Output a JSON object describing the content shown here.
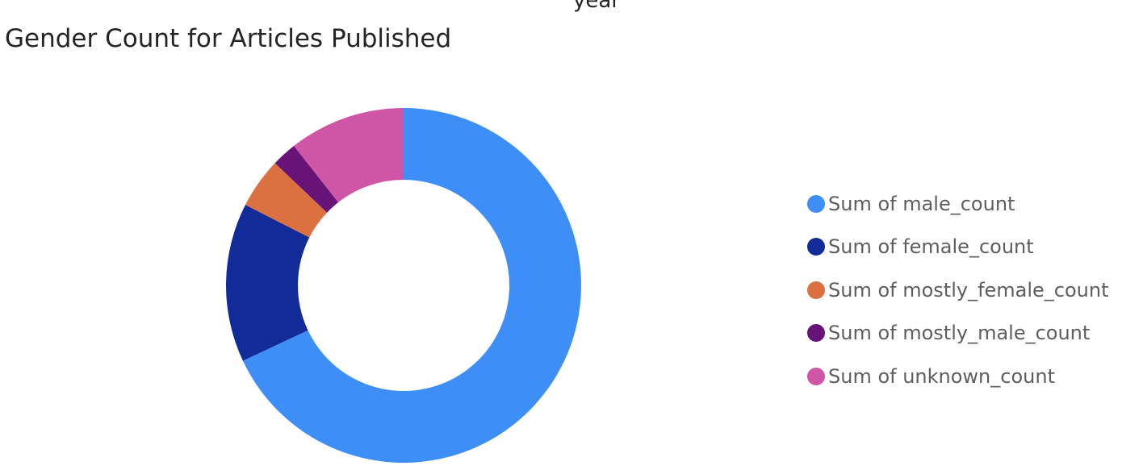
{
  "header": {
    "top_label": "year"
  },
  "chart_data": {
    "type": "pie",
    "variant": "donut",
    "title": "Gender Count for Articles Published",
    "legend_position": "right",
    "series": [
      {
        "name": "Sum of male_count",
        "value": 68.0,
        "color": "#3e8ef7"
      },
      {
        "name": "Sum of female_count",
        "value": 14.5,
        "color": "#122b99"
      },
      {
        "name": "Sum of mostly_female_count",
        "value": 4.6,
        "color": "#db7140"
      },
      {
        "name": "Sum of mostly_male_count",
        "value": 2.3,
        "color": "#671377"
      },
      {
        "name": "Sum of unknown_count",
        "value": 10.6,
        "color": "#cf55a6"
      }
    ]
  }
}
